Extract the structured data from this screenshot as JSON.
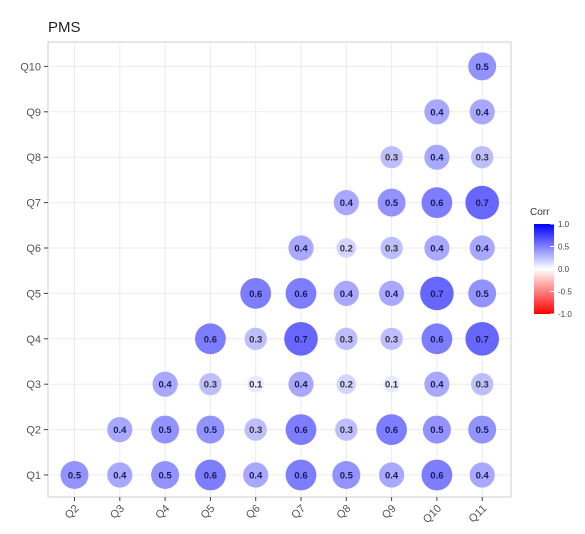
{
  "chart_data": {
    "type": "heatmap",
    "title": "PMS",
    "x_categories": [
      "Q2",
      "Q3",
      "Q4",
      "Q5",
      "Q6",
      "Q7",
      "Q8",
      "Q9",
      "Q10",
      "Q11"
    ],
    "y_categories": [
      "Q1",
      "Q2",
      "Q3",
      "Q4",
      "Q5",
      "Q6",
      "Q7",
      "Q8",
      "Q9",
      "Q10"
    ],
    "values": [
      [
        0.5,
        0.4,
        0.5,
        0.6,
        0.4,
        0.6,
        0.5,
        0.4,
        0.6,
        0.4
      ],
      [
        null,
        0.4,
        0.5,
        0.5,
        0.3,
        0.6,
        0.3,
        0.6,
        0.5,
        0.5
      ],
      [
        null,
        null,
        0.4,
        0.3,
        0.1,
        0.4,
        0.2,
        0.1,
        0.4,
        0.3
      ],
      [
        null,
        null,
        null,
        0.6,
        0.3,
        0.7,
        0.3,
        0.3,
        0.6,
        0.7
      ],
      [
        null,
        null,
        null,
        null,
        0.6,
        0.6,
        0.4,
        0.4,
        0.7,
        0.5
      ],
      [
        null,
        null,
        null,
        null,
        null,
        0.4,
        0.2,
        0.3,
        0.4,
        0.4
      ],
      [
        null,
        null,
        null,
        null,
        null,
        null,
        0.4,
        0.5,
        0.6,
        0.7
      ],
      [
        null,
        null,
        null,
        null,
        null,
        null,
        null,
        0.3,
        0.4,
        0.3
      ],
      [
        null,
        null,
        null,
        null,
        null,
        null,
        null,
        null,
        0.4,
        0.4
      ],
      [
        null,
        null,
        null,
        null,
        null,
        null,
        null,
        null,
        null,
        0.5
      ]
    ],
    "value_labels": true,
    "color_scale": {
      "low": "#ff0000",
      "mid": "#ffffff",
      "high": "#0000ff",
      "range": [
        -1,
        1
      ]
    },
    "legend": {
      "title": "Corr",
      "ticks": [
        "1.0",
        "0.5",
        "0.0",
        "-0.5",
        "-1.0"
      ],
      "tick_values": [
        1.0,
        0.5,
        0.0,
        -0.5,
        -1.0
      ],
      "position": "right"
    },
    "grid": true
  }
}
